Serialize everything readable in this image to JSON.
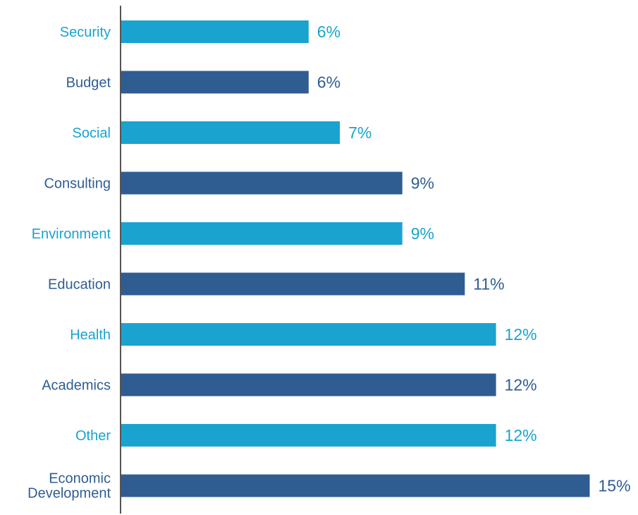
{
  "chart_data": {
    "type": "bar",
    "orientation": "horizontal",
    "title": "",
    "xlabel": "",
    "ylabel": "",
    "xlim": [
      0,
      15
    ],
    "grid": false,
    "legend": "none",
    "categories": [
      "Security",
      "Budget",
      "Social",
      "Consulting",
      "Environment",
      "Education",
      "Health",
      "Academics",
      "Other",
      "Economic Development"
    ],
    "values": [
      6,
      6,
      7,
      9,
      9,
      11,
      12,
      12,
      12,
      15
    ],
    "value_labels": [
      "6%",
      "6%",
      "7%",
      "9%",
      "9%",
      "11%",
      "12%",
      "12%",
      "12%",
      "15%"
    ],
    "bar_colors": [
      "#1aa3cf",
      "#2f5d92",
      "#1aa3cf",
      "#2f5d92",
      "#1aa3cf",
      "#2f5d92",
      "#1aa3cf",
      "#2f5d92",
      "#1aa3cf",
      "#2f5d92"
    ],
    "axis_color": "#555555"
  }
}
